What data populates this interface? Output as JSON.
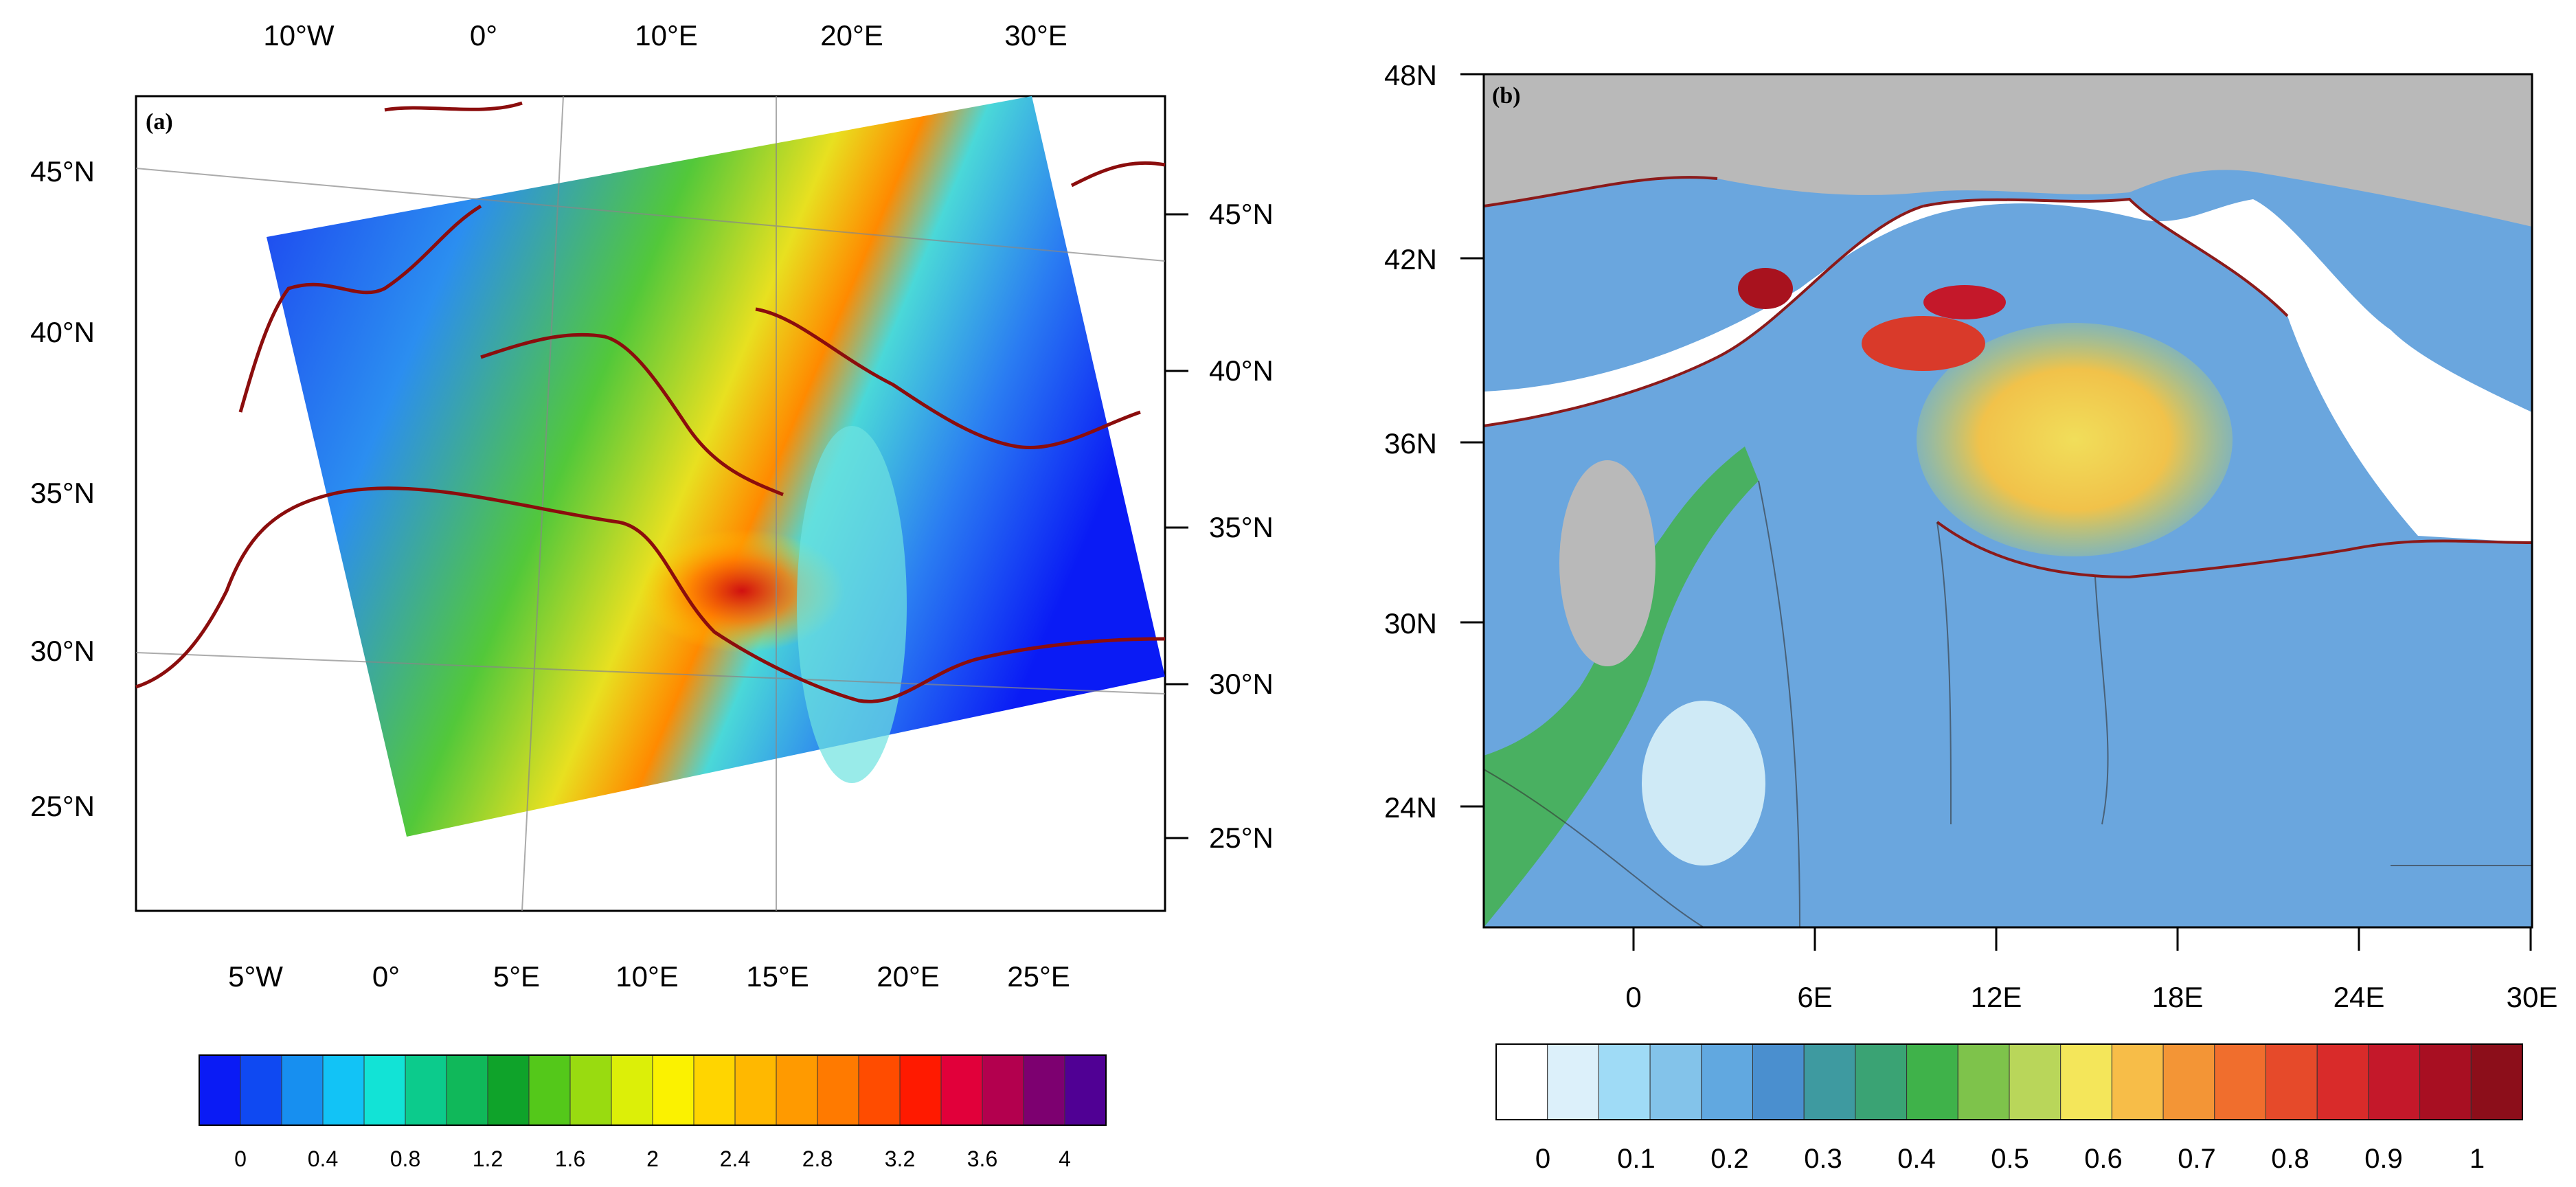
{
  "panels": [
    {
      "id": "a",
      "label": "(a)",
      "top_lon_labels": [
        "10°W",
        "0°",
        "10°E",
        "20°E",
        "30°E"
      ],
      "bottom_lon_labels": [
        "5°W",
        "0°",
        "5°E",
        "10°E",
        "15°E",
        "20°E",
        "25°E"
      ],
      "left_lat_labels": [
        "45°N",
        "40°N",
        "35°N",
        "30°N",
        "25°N"
      ],
      "right_lat_labels": [
        "45°N",
        "40°N",
        "35°N",
        "30°N",
        "25°N"
      ],
      "colorbar": {
        "colors": [
          "#0a1bf5",
          "#0f49f2",
          "#178ff0",
          "#12c3f6",
          "#12e3d6",
          "#0ccb8c",
          "#10b85a",
          "#0fa32a",
          "#54c81a",
          "#99db10",
          "#dcef08",
          "#fbf200",
          "#ffd500",
          "#ffb800",
          "#ff9a00",
          "#ff7a00",
          "#ff4c00",
          "#ff1a00",
          "#e1003a",
          "#b3004e",
          "#7d0070",
          "#500094"
        ],
        "tick_labels": [
          "0",
          "0.4",
          "0.8",
          "1.2",
          "1.6",
          "2",
          "2.4",
          "2.8",
          "3.2",
          "3.6",
          "4"
        ]
      }
    },
    {
      "id": "b",
      "label": "(b)",
      "lat_labels": [
        "48N",
        "42N",
        "36N",
        "30N",
        "24N"
      ],
      "lon_labels": [
        "0",
        "6E",
        "12E",
        "18E",
        "24E",
        "30E"
      ],
      "colorbar": {
        "colors": [
          "#ffffff",
          "#dcf0fa",
          "#9fdbf6",
          "#83c3ea",
          "#61a8e0",
          "#4a8fcf",
          "#3e9aa0",
          "#3aa374",
          "#3fb24a",
          "#7ec34b",
          "#b9d65a",
          "#f4e65a",
          "#f7bd48",
          "#f39536",
          "#f06e2d",
          "#e64a2a",
          "#d92b2a",
          "#c4182a",
          "#a80f22",
          "#8c0e1a"
        ],
        "tick_labels": [
          "0",
          "0.1",
          "0.2",
          "0.3",
          "0.4",
          "0.5",
          "0.6",
          "0.7",
          "0.8",
          "0.9",
          "1"
        ]
      }
    }
  ]
}
